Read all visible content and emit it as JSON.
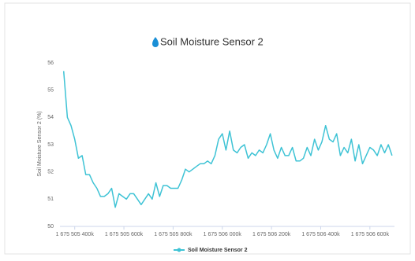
{
  "chart_data": {
    "type": "line",
    "title": "Soil Moisture Sensor 2",
    "ylabel": "Soil Moisture Sensor 2 (%)",
    "x": [
      1675505355000,
      1675505370000,
      1675505385000,
      1675505400000,
      1675505415000,
      1675505430000,
      1675505445000,
      1675505460000,
      1675505475000,
      1675505490000,
      1675505505000,
      1675505520000,
      1675505535000,
      1675505550000,
      1675505565000,
      1675505580000,
      1675505595000,
      1675505610000,
      1675505625000,
      1675505640000,
      1675505655000,
      1675505670000,
      1675505685000,
      1675505700000,
      1675505715000,
      1675505730000,
      1675505745000,
      1675505760000,
      1675505775000,
      1675505790000,
      1675505805000,
      1675505820000,
      1675505835000,
      1675505850000,
      1675505865000,
      1675505880000,
      1675505895000,
      1675505910000,
      1675505925000,
      1675505940000,
      1675505955000,
      1675505970000,
      1675505985000,
      1675506000000,
      1675506015000,
      1675506030000,
      1675506045000,
      1675506060000,
      1675506075000,
      1675506090000,
      1675506105000,
      1675506120000,
      1675506135000,
      1675506150000,
      1675506165000,
      1675506180000,
      1675506195000,
      1675506210000,
      1675506225000,
      1675506240000,
      1675506255000,
      1675506270000,
      1675506285000,
      1675506300000,
      1675506315000,
      1675506330000,
      1675506345000,
      1675506360000,
      1675506375000,
      1675506390000,
      1675506405000,
      1675506420000,
      1675506435000,
      1675506450000,
      1675506465000,
      1675506480000,
      1675506495000,
      1675506510000,
      1675506525000,
      1675506540000,
      1675506555000,
      1675506570000,
      1675506585000,
      1675506600000,
      1675506615000,
      1675506630000,
      1675506645000,
      1675506660000,
      1675506675000,
      1675506690000
    ],
    "series": [
      {
        "name": "Soil Moisture Sensor 2",
        "color": "#3ec3d5",
        "values": [
          55.7,
          54.0,
          53.7,
          53.2,
          52.5,
          52.6,
          51.9,
          51.9,
          51.6,
          51.4,
          51.1,
          51.1,
          51.2,
          51.4,
          50.7,
          51.2,
          51.1,
          51.0,
          51.2,
          51.2,
          51.0,
          50.8,
          51.0,
          51.2,
          51.0,
          51.6,
          51.1,
          51.5,
          51.5,
          51.4,
          51.4,
          51.4,
          51.7,
          52.1,
          52.0,
          52.1,
          52.2,
          52.3,
          52.3,
          52.4,
          52.3,
          52.6,
          53.2,
          53.4,
          52.8,
          53.5,
          52.8,
          52.7,
          52.9,
          53.0,
          52.5,
          52.7,
          52.6,
          52.8,
          52.7,
          53.0,
          53.4,
          52.8,
          52.5,
          52.9,
          52.6,
          52.6,
          52.9,
          52.4,
          52.4,
          52.5,
          52.9,
          52.6,
          53.2,
          52.8,
          53.1,
          53.7,
          53.2,
          53.1,
          53.4,
          52.6,
          52.9,
          52.7,
          53.2,
          52.4,
          53.0,
          52.3,
          52.6,
          52.9,
          52.8,
          52.6,
          53.0,
          52.7,
          53.0,
          52.6
        ]
      }
    ],
    "xlim": [
      1675505340000,
      1675506700000
    ],
    "xticks": [
      {
        "value": 1675505400000,
        "label": "1 675 505 400k"
      },
      {
        "value": 1675505600000,
        "label": "1 675 505 600k"
      },
      {
        "value": 1675505800000,
        "label": "1 675 505 800k"
      },
      {
        "value": 1675506000000,
        "label": "1 675 506 000k"
      },
      {
        "value": 1675506200000,
        "label": "1 675 506 200k"
      },
      {
        "value": 1675506400000,
        "label": "1 675 506 400k"
      },
      {
        "value": 1675506600000,
        "label": "1 675 506 600k"
      }
    ],
    "ylim": [
      50,
      56
    ],
    "yticks": [
      50,
      51,
      52,
      53,
      54,
      55,
      56
    ],
    "grid": false
  }
}
